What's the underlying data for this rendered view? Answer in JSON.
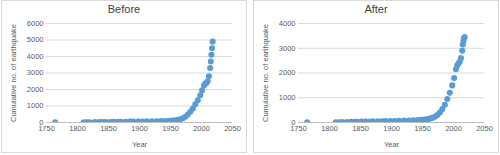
{
  "chart_data": [
    {
      "type": "scatter",
      "title": "Before",
      "x_label": "Year",
      "y_label": "Cumulative no. of earthquake",
      "x": [
        1764,
        1810,
        1815,
        1820,
        1828,
        1835,
        1840,
        1845,
        1852,
        1858,
        1865,
        1870,
        1878,
        1885,
        1890,
        1898,
        1905,
        1912,
        1920,
        1928,
        1935,
        1942,
        1948,
        1953,
        1958,
        1962,
        1966,
        1970,
        1974,
        1978,
        1982,
        1986,
        1990,
        1994,
        1998,
        2001,
        2004,
        2006,
        2008,
        2010,
        2012,
        2014,
        2015,
        2016,
        2017,
        2018
      ],
      "values": [
        5,
        10,
        13,
        16,
        20,
        24,
        27,
        30,
        34,
        37,
        40,
        44,
        48,
        52,
        55,
        59,
        63,
        68,
        74,
        80,
        87,
        95,
        105,
        120,
        140,
        165,
        200,
        260,
        350,
        480,
        650,
        850,
        1100,
        1350,
        1650,
        1950,
        2250,
        2350,
        2400,
        2500,
        2800,
        3300,
        3700,
        4100,
        4500,
        4900
      ],
      "color": "#5b9bd5",
      "marker": "circle",
      "xlim": [
        1750,
        2050
      ],
      "xticks": [
        1750,
        1800,
        1850,
        1900,
        1950,
        2000,
        2050
      ],
      "ylim": [
        0,
        6000
      ],
      "yticks": [
        0,
        1000,
        2000,
        3000,
        4000,
        5000,
        6000
      ],
      "grid": true
    },
    {
      "type": "scatter",
      "title": "After",
      "x_label": "Year",
      "y_label": "Cumulative no. of earthquake",
      "x": [
        1764,
        1810,
        1815,
        1820,
        1828,
        1835,
        1840,
        1845,
        1852,
        1858,
        1865,
        1870,
        1878,
        1885,
        1890,
        1898,
        1905,
        1912,
        1920,
        1928,
        1935,
        1942,
        1948,
        1953,
        1958,
        1962,
        1966,
        1970,
        1974,
        1978,
        1982,
        1986,
        1990,
        1994,
        1998,
        2001,
        2004,
        2006,
        2008,
        2010,
        2012,
        2014,
        2015,
        2016,
        2017,
        2018
      ],
      "values": [
        5,
        10,
        13,
        16,
        20,
        24,
        27,
        30,
        34,
        37,
        40,
        44,
        48,
        52,
        55,
        59,
        63,
        68,
        74,
        80,
        87,
        95,
        105,
        118,
        135,
        155,
        185,
        230,
        300,
        400,
        540,
        720,
        950,
        1200,
        1500,
        1800,
        2150,
        2300,
        2380,
        2450,
        2600,
        2900,
        3150,
        3300,
        3400,
        3450
      ],
      "color": "#5b9bd5",
      "marker": "circle",
      "xlim": [
        1750,
        2050
      ],
      "xticks": [
        1750,
        1800,
        1850,
        1900,
        1950,
        2000,
        2050
      ],
      "ylim": [
        0,
        4000
      ],
      "yticks": [
        0,
        1000,
        2000,
        3000,
        4000
      ],
      "grid": true
    }
  ]
}
